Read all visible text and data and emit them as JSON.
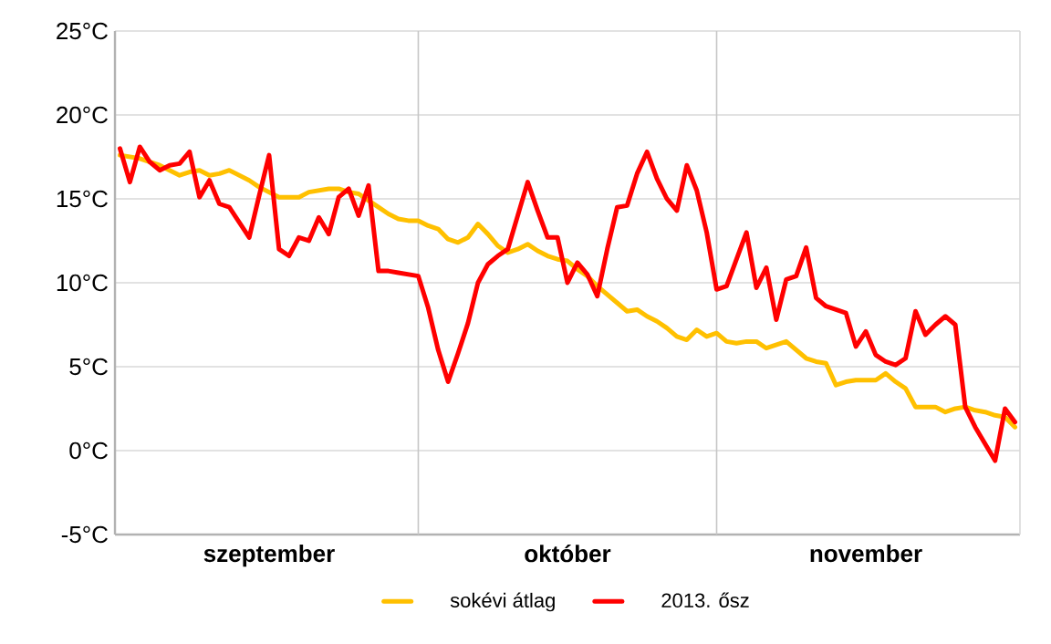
{
  "chart_data": {
    "type": "line",
    "categories": [
      null,
      null,
      null,
      null,
      null,
      null,
      null,
      null,
      null,
      null,
      null,
      null,
      null,
      null,
      null,
      "szeptember",
      null,
      null,
      null,
      null,
      null,
      null,
      null,
      null,
      null,
      null,
      null,
      null,
      null,
      null,
      null,
      null,
      null,
      null,
      null,
      null,
      null,
      null,
      null,
      null,
      null,
      null,
      null,
      null,
      null,
      "október",
      null,
      null,
      null,
      null,
      null,
      null,
      null,
      null,
      null,
      null,
      null,
      null,
      null,
      null,
      null,
      null,
      null,
      null,
      null,
      null,
      null,
      null,
      null,
      null,
      null,
      null,
      null,
      null,
      null,
      "november",
      null,
      null,
      null,
      null,
      null,
      null,
      null,
      null,
      null,
      null,
      null,
      null,
      null,
      null,
      null
    ],
    "ylim": [
      -5,
      25
    ],
    "yticks": [
      {
        "value": -5,
        "label": "-5°C"
      },
      {
        "value": 0,
        "label": "0°C"
      },
      {
        "value": 5,
        "label": "5°C"
      },
      {
        "value": 10,
        "label": "10°C"
      },
      {
        "value": 15,
        "label": "15°C"
      },
      {
        "value": 20,
        "label": "20°C"
      },
      {
        "value": 25,
        "label": "25°C"
      }
    ],
    "grid": true,
    "legend": "bottom",
    "marker": "none",
    "line_style": "solid",
    "series": [
      {
        "name": "sokévi átlag",
        "color": "#ffc000",
        "values": [
          17.6,
          17.5,
          17.4,
          17.2,
          17.0,
          16.7,
          16.4,
          16.6,
          16.7,
          16.4,
          16.5,
          16.7,
          16.4,
          16.1,
          15.7,
          15.4,
          15.1,
          15.1,
          15.1,
          15.4,
          15.5,
          15.6,
          15.6,
          15.4,
          15.3,
          14.9,
          14.5,
          14.1,
          13.8,
          13.7,
          13.7,
          13.4,
          13.2,
          12.6,
          12.4,
          12.7,
          13.5,
          12.9,
          12.2,
          11.8,
          12.0,
          12.3,
          11.9,
          11.6,
          11.4,
          11.3,
          10.8,
          10.4,
          9.8,
          9.3,
          8.8,
          8.3,
          8.4,
          8.0,
          7.7,
          7.3,
          6.8,
          6.6,
          7.2,
          6.8,
          7.0,
          6.5,
          6.4,
          6.5,
          6.5,
          6.1,
          6.3,
          6.5,
          6.0,
          5.5,
          5.3,
          5.2,
          3.9,
          4.1,
          4.2,
          4.2,
          4.2,
          4.6,
          4.1,
          3.7,
          2.6,
          2.6,
          2.6,
          2.3,
          2.5,
          2.6,
          2.4,
          2.3,
          2.1,
          2.0,
          1.4
        ]
      },
      {
        "name": "2013. ősz",
        "color": "#ff0000",
        "values": [
          18.0,
          16.0,
          18.1,
          17.2,
          16.7,
          17.0,
          17.1,
          17.8,
          15.1,
          16.1,
          14.7,
          14.5,
          13.6,
          12.7,
          15.2,
          17.6,
          12.0,
          11.6,
          12.7,
          12.5,
          13.9,
          12.9,
          15.1,
          15.6,
          14.0,
          15.8,
          10.7,
          10.7,
          10.6,
          10.5,
          10.4,
          8.5,
          6.0,
          4.1,
          5.8,
          7.6,
          10.0,
          11.1,
          11.6,
          12.0,
          14.0,
          16.0,
          14.3,
          12.7,
          12.7,
          10.0,
          11.2,
          10.5,
          9.2,
          12.0,
          14.5,
          14.6,
          16.5,
          17.8,
          16.2,
          15.0,
          14.3,
          17.0,
          15.5,
          13.0,
          9.6,
          9.8,
          11.4,
          13.0,
          9.7,
          10.9,
          7.8,
          10.2,
          10.4,
          12.1,
          9.1,
          8.6,
          8.4,
          8.2,
          6.2,
          7.1,
          5.7,
          5.3,
          5.1,
          5.5,
          8.3,
          6.9,
          7.5,
          8.0,
          7.5,
          2.6,
          1.4,
          0.4,
          -0.6,
          2.5,
          1.7
        ]
      }
    ]
  }
}
